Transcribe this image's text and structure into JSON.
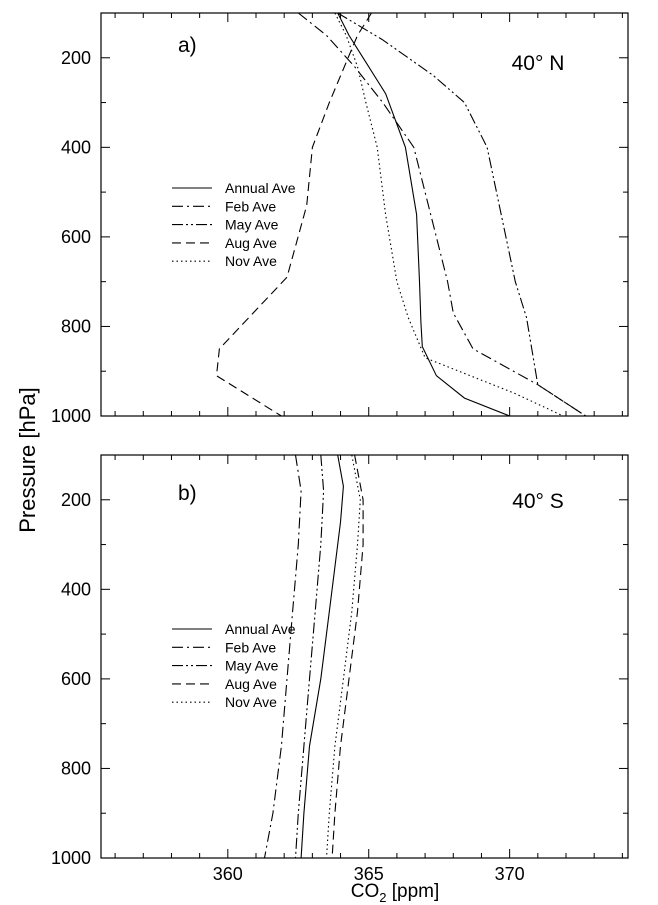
{
  "figure": {
    "ylabel": "Pressure [hPa]",
    "xlabel_main": "CO",
    "xlabel_sub": "2",
    "xlabel_unit": " [ppm]"
  },
  "chart_data": [
    {
      "type": "line",
      "panel_label": "a)",
      "region_label": "40° N",
      "xlim": [
        355.5,
        374.2
      ],
      "ylim": [
        1000,
        100
      ],
      "yticks": [
        200,
        400,
        600,
        800,
        1000
      ],
      "xticks": [
        360,
        365,
        370
      ],
      "grid": false,
      "legend_position": "left-middle",
      "series": [
        {
          "name": "Annual Ave",
          "dash": "solid",
          "x": [
            363.9,
            364.3,
            364.8,
            365.6,
            366.3,
            366.7,
            366.8,
            366.85,
            366.9,
            367.4,
            368.4,
            370.0
          ],
          "y": [
            100,
            150,
            200,
            280,
            400,
            550,
            700,
            790,
            845,
            910,
            960,
            1000
          ]
        },
        {
          "name": "Feb Ave",
          "dash": "dashdot",
          "x": [
            362.5,
            363.5,
            364.5,
            365.5,
            366.6,
            367.2,
            367.8,
            368.0,
            368.7,
            371.0,
            372.7
          ],
          "y": [
            100,
            150,
            220,
            300,
            400,
            550,
            700,
            770,
            850,
            930,
            1000
          ]
        },
        {
          "name": "May Ave",
          "dash": "dashdotdot",
          "x": [
            363.9,
            365.5,
            367.3,
            368.4,
            369.2,
            369.7,
            370.2,
            370.6,
            371.0,
            372.7
          ],
          "y": [
            100,
            160,
            240,
            300,
            400,
            550,
            700,
            780,
            930,
            1000
          ]
        },
        {
          "name": "Aug Ave",
          "dash": "dashed",
          "x": [
            365.1,
            364.6,
            364.2,
            363.6,
            363.0,
            362.8,
            362.1,
            360.9,
            359.7,
            359.6,
            361.9
          ],
          "y": [
            100,
            150,
            210,
            300,
            400,
            530,
            690,
            770,
            850,
            910,
            1000
          ]
        },
        {
          "name": "Nov Ave",
          "dash": "dotted",
          "x": [
            363.8,
            364.2,
            364.6,
            364.9,
            365.3,
            365.6,
            366.0,
            366.4,
            367.0,
            370.2,
            371.9
          ],
          "y": [
            100,
            150,
            220,
            300,
            400,
            550,
            700,
            780,
            870,
            950,
            1000
          ]
        }
      ],
      "legend": [
        "Annual Ave",
        "Feb Ave",
        "May Ave",
        "Aug Ave",
        "Nov Ave"
      ]
    },
    {
      "type": "line",
      "panel_label": "b)",
      "region_label": "40° S",
      "xlim": [
        355.5,
        374.2
      ],
      "ylim": [
        1000,
        100
      ],
      "yticks": [
        200,
        400,
        600,
        800,
        1000
      ],
      "xticks": [
        360,
        365,
        370
      ],
      "xticklabels": [
        "360",
        "365",
        "370"
      ],
      "grid": false,
      "legend_position": "left-middle",
      "series": [
        {
          "name": "Annual Ave",
          "dash": "solid",
          "x": [
            363.9,
            364.1,
            364.0,
            363.8,
            363.6,
            363.3,
            362.9,
            362.7,
            362.6
          ],
          "y": [
            100,
            170,
            250,
            350,
            450,
            600,
            750,
            900,
            1000
          ]
        },
        {
          "name": "Feb Ave",
          "dash": "dashdot",
          "x": [
            362.4,
            362.6,
            362.5,
            362.3,
            362.1,
            361.9,
            361.6,
            361.3
          ],
          "y": [
            100,
            180,
            300,
            450,
            600,
            750,
            900,
            1000
          ]
        },
        {
          "name": "May Ave",
          "dash": "dashdotdot",
          "x": [
            363.3,
            363.4,
            363.3,
            363.1,
            362.9,
            362.7,
            362.5,
            362.4
          ],
          "y": [
            100,
            180,
            300,
            450,
            600,
            750,
            900,
            1000
          ]
        },
        {
          "name": "Aug Ave",
          "dash": "dashed",
          "x": [
            364.5,
            364.8,
            364.8,
            364.6,
            364.3,
            364.0,
            363.8,
            363.7
          ],
          "y": [
            100,
            200,
            300,
            450,
            600,
            750,
            900,
            1000
          ]
        },
        {
          "name": "Nov Ave",
          "dash": "dotted",
          "x": [
            364.4,
            364.7,
            364.6,
            364.4,
            364.1,
            363.8,
            363.6,
            363.5
          ],
          "y": [
            100,
            200,
            300,
            450,
            600,
            750,
            900,
            1000
          ]
        }
      ],
      "legend": [
        "Annual Ave",
        "Feb Ave",
        "May Ave",
        "Aug Ave",
        "Nov Ave"
      ]
    }
  ]
}
